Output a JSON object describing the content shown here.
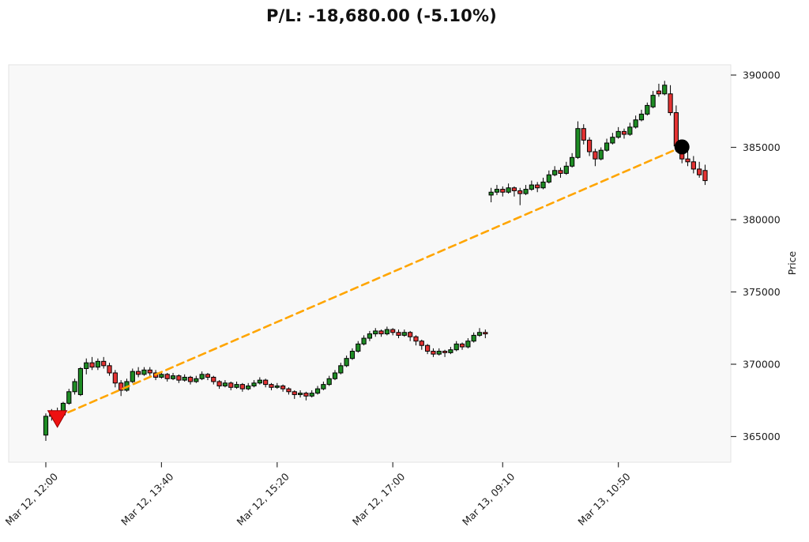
{
  "header": {
    "title": "P/L: -18,680.00 (-5.10%)"
  },
  "chart_data": {
    "type": "candlestick",
    "title": "P/L: -18,680.00 (-5.10%)",
    "xlabel": "",
    "ylabel": "Price",
    "ylim": [
      363300,
      390700
    ],
    "grid": false,
    "y_ticks": [
      365000,
      370000,
      375000,
      380000,
      385000,
      390000
    ],
    "x_ticks": [
      {
        "index": 0,
        "label": "Mar 12, 12:00"
      },
      {
        "index": 20,
        "label": "Mar 12, 13:40"
      },
      {
        "index": 40,
        "label": "Mar 12, 15:20"
      },
      {
        "index": 60,
        "label": "Mar 12, 17:00"
      },
      {
        "index": 79,
        "label": "Mar 13, 09:10"
      },
      {
        "index": 99,
        "label": "Mar 13, 10:50"
      }
    ],
    "colors": {
      "up": "#1e8c24",
      "down": "#e43333",
      "edge": "#000000",
      "wick": "#000000",
      "trend_line": "#ffa500",
      "entry_marker": "#ee1111",
      "exit_marker": "#000000",
      "plot_bg": "#f8f8f8",
      "figure_bg": "#ffffff",
      "tick_text": "#1b1b1b"
    },
    "candles_ohlc": [
      [
        365100,
        366600,
        364700,
        366400
      ],
      [
        366400,
        366900,
        366100,
        366700
      ],
      [
        366700,
        367000,
        366200,
        366500
      ],
      [
        366500,
        367400,
        366400,
        367300
      ],
      [
        367300,
        368300,
        367200,
        368100
      ],
      [
        368100,
        369000,
        367900,
        368800
      ],
      [
        367900,
        369800,
        367800,
        369700
      ],
      [
        369700,
        370400,
        369300,
        370100
      ],
      [
        370100,
        370500,
        369600,
        369800
      ],
      [
        369800,
        370400,
        369600,
        370200
      ],
      [
        370200,
        370500,
        369700,
        369900
      ],
      [
        369900,
        370100,
        369200,
        369400
      ],
      [
        369400,
        369600,
        368400,
        368700
      ],
      [
        368700,
        368900,
        367800,
        368200
      ],
      [
        368200,
        369000,
        368100,
        368800
      ],
      [
        368800,
        369700,
        368700,
        369500
      ],
      [
        369500,
        369800,
        369100,
        369300
      ],
      [
        369300,
        369800,
        369200,
        369600
      ],
      [
        369600,
        369800,
        369200,
        369400
      ],
      [
        369400,
        369600,
        368900,
        369100
      ],
      [
        369100,
        369500,
        369000,
        369300
      ],
      [
        369300,
        369400,
        368800,
        369000
      ],
      [
        369000,
        369400,
        368900,
        369200
      ],
      [
        369200,
        369300,
        368700,
        368900
      ],
      [
        368900,
        369300,
        368800,
        369100
      ],
      [
        369100,
        369200,
        368600,
        368800
      ],
      [
        368800,
        369200,
        368700,
        369000
      ],
      [
        369000,
        369500,
        368900,
        369300
      ],
      [
        369300,
        369400,
        368900,
        369100
      ],
      [
        369100,
        369200,
        368600,
        368800
      ],
      [
        368800,
        368900,
        368300,
        368500
      ],
      [
        368500,
        368900,
        368400,
        368700
      ],
      [
        368700,
        368800,
        368200,
        368400
      ],
      [
        368400,
        368800,
        368300,
        368600
      ],
      [
        368600,
        368700,
        368100,
        368300
      ],
      [
        368300,
        368700,
        368200,
        368500
      ],
      [
        368500,
        368900,
        368400,
        368700
      ],
      [
        368700,
        369100,
        368600,
        368900
      ],
      [
        368900,
        369000,
        368400,
        368600
      ],
      [
        368600,
        368700,
        368200,
        368400
      ],
      [
        368400,
        368700,
        368300,
        368500
      ],
      [
        368500,
        368600,
        368100,
        368300
      ],
      [
        368300,
        368400,
        367900,
        368100
      ],
      [
        368100,
        368200,
        367600,
        367900
      ],
      [
        367900,
        368200,
        367700,
        368000
      ],
      [
        368000,
        368100,
        367500,
        367800
      ],
      [
        367800,
        368200,
        367700,
        368000
      ],
      [
        368000,
        368500,
        367900,
        368300
      ],
      [
        368300,
        368800,
        368200,
        368600
      ],
      [
        368600,
        369200,
        368500,
        369000
      ],
      [
        369000,
        369600,
        368900,
        369400
      ],
      [
        369400,
        370100,
        369300,
        369900
      ],
      [
        369900,
        370600,
        369800,
        370400
      ],
      [
        370400,
        371100,
        370300,
        370900
      ],
      [
        370900,
        371600,
        370800,
        371400
      ],
      [
        371400,
        372000,
        371300,
        371800
      ],
      [
        371800,
        372300,
        371600,
        372100
      ],
      [
        372100,
        372500,
        371900,
        372300
      ],
      [
        372300,
        372400,
        371900,
        372100
      ],
      [
        372100,
        372600,
        372000,
        372400
      ],
      [
        372400,
        372500,
        372000,
        372200
      ],
      [
        372200,
        372400,
        371800,
        372000
      ],
      [
        372000,
        372400,
        371900,
        372200
      ],
      [
        372200,
        372300,
        371600,
        371900
      ],
      [
        371900,
        372000,
        371300,
        371600
      ],
      [
        371600,
        371700,
        371000,
        371300
      ],
      [
        371300,
        371400,
        370700,
        370900
      ],
      [
        370900,
        371100,
        370500,
        370700
      ],
      [
        370700,
        371100,
        370600,
        370900
      ],
      [
        370900,
        371000,
        370500,
        370800
      ],
      [
        370800,
        371200,
        370700,
        371000
      ],
      [
        371000,
        371600,
        370900,
        371400
      ],
      [
        371400,
        371500,
        371000,
        371200
      ],
      [
        371200,
        371800,
        371100,
        371600
      ],
      [
        371600,
        372200,
        371500,
        372000
      ],
      [
        372000,
        372500,
        371900,
        372200
      ],
      [
        372200,
        372400,
        371800,
        372100
      ],
      [
        381700,
        382200,
        381200,
        381900
      ],
      [
        381900,
        382400,
        381700,
        382100
      ],
      [
        382100,
        382300,
        381600,
        381900
      ],
      [
        381900,
        382500,
        381800,
        382200
      ],
      [
        382200,
        382300,
        381600,
        382000
      ],
      [
        382000,
        382200,
        381000,
        381800
      ],
      [
        381800,
        382400,
        381700,
        382100
      ],
      [
        382100,
        382700,
        382000,
        382400
      ],
      [
        382400,
        382600,
        381900,
        382200
      ],
      [
        382200,
        382900,
        382100,
        382600
      ],
      [
        382600,
        383400,
        382500,
        383100
      ],
      [
        383100,
        383700,
        383000,
        383400
      ],
      [
        383400,
        383600,
        382900,
        383200
      ],
      [
        383200,
        384000,
        383100,
        383700
      ],
      [
        383700,
        384600,
        383600,
        384300
      ],
      [
        384300,
        386800,
        384200,
        386300
      ],
      [
        386300,
        386600,
        385200,
        385500
      ],
      [
        385500,
        385700,
        384400,
        384700
      ],
      [
        384700,
        384900,
        383700,
        384200
      ],
      [
        384200,
        385000,
        384100,
        384800
      ],
      [
        384800,
        385600,
        384700,
        385300
      ],
      [
        385300,
        386000,
        385200,
        385700
      ],
      [
        385700,
        386400,
        385600,
        386100
      ],
      [
        386100,
        386300,
        385600,
        385900
      ],
      [
        385900,
        386700,
        385800,
        386400
      ],
      [
        386400,
        387200,
        386300,
        386900
      ],
      [
        386900,
        387600,
        386800,
        387300
      ],
      [
        387300,
        388100,
        387200,
        387900
      ],
      [
        387800,
        388900,
        387700,
        388600
      ],
      [
        388900,
        389400,
        388500,
        388700
      ],
      [
        388700,
        389600,
        388600,
        389300
      ],
      [
        388700,
        389300,
        387200,
        387400
      ],
      [
        387400,
        387900,
        384700,
        385100
      ],
      [
        385100,
        385500,
        383900,
        384200
      ],
      [
        384200,
        384800,
        383700,
        384000
      ],
      [
        384000,
        384400,
        383200,
        383500
      ],
      [
        383500,
        384000,
        382900,
        383100
      ],
      [
        383400,
        383800,
        382400,
        382700
      ]
    ],
    "markers": [
      {
        "name": "entry",
        "shape": "triangle-down",
        "index": 2,
        "price": 366350,
        "color": "#ee1111"
      },
      {
        "name": "exit",
        "shape": "circle",
        "index": 110,
        "price": 385030,
        "color": "#000000"
      }
    ],
    "trend_line": {
      "from": {
        "index": 2,
        "price": 366350
      },
      "to": {
        "index": 110,
        "price": 385030
      },
      "style": "dashed",
      "color": "#ffa500"
    }
  }
}
